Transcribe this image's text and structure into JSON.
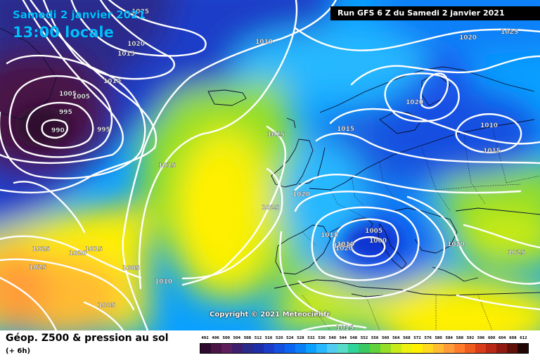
{
  "header": {
    "date": "Samedi 2 janvier 2021",
    "local_time": "13:00 locale",
    "run_info": "Run GFS 6 Z du Samedi 2 janvier 2021"
  },
  "footer": {
    "product": "Géop. Z500 & pression au sol",
    "offset": "(+ 6h)"
  },
  "copyright": "Copyright © 2021 Meteociel.fr",
  "legend": {
    "values": [
      "492",
      "496",
      "500",
      "504",
      "508",
      "512",
      "516",
      "520",
      "524",
      "528",
      "532",
      "536",
      "540",
      "544",
      "548",
      "552",
      "556",
      "560",
      "564",
      "568",
      "572",
      "576",
      "580",
      "584",
      "588",
      "592",
      "596",
      "600",
      "604",
      "608",
      "612"
    ],
    "colors": [
      "#2d0a2e",
      "#4a1446",
      "#5e1e5c",
      "#3d1f6e",
      "#2a2a8c",
      "#1e2ea8",
      "#1a3cc8",
      "#1450e0",
      "#0a66f0",
      "#0a80f8",
      "#0aa0ff",
      "#28b8ff",
      "#50ccf0",
      "#58dcc8",
      "#30d49a",
      "#38c864",
      "#60d23c",
      "#94de28",
      "#c8ea18",
      "#eef010",
      "#fff000",
      "#ffd820",
      "#ffbc30",
      "#ff9c38",
      "#ff7c2c",
      "#f05c20",
      "#d83c18",
      "#b82814",
      "#901a10",
      "#601008",
      "#200604"
    ]
  },
  "isobars": [
    {
      "label": "1025"
    },
    {
      "label": "1020"
    },
    {
      "label": "1015"
    },
    {
      "label": "1010"
    },
    {
      "label": "1010"
    },
    {
      "label": "1005"
    },
    {
      "label": "1005"
    },
    {
      "label": "995"
    },
    {
      "label": "995"
    },
    {
      "label": "990"
    },
    {
      "label": "1010"
    },
    {
      "label": "1025"
    },
    {
      "label": "1015"
    },
    {
      "label": "1025"
    },
    {
      "label": "1020"
    },
    {
      "label": "1015"
    },
    {
      "label": "1010"
    },
    {
      "label": "1005"
    },
    {
      "label": "1000"
    },
    {
      "label": "1020"
    },
    {
      "label": "1025"
    },
    {
      "label": "1020"
    },
    {
      "label": "1015"
    },
    {
      "label": "1005"
    },
    {
      "label": "1025"
    },
    {
      "label": "1010"
    },
    {
      "label": "1005"
    },
    {
      "label": "1015"
    },
    {
      "label": "1025"
    },
    {
      "label": "1020"
    },
    {
      "label": "1020"
    },
    {
      "label": "1010"
    },
    {
      "label": "1015"
    },
    {
      "label": "1025"
    },
    {
      "label": "1020"
    },
    {
      "label": "1015"
    }
  ]
}
